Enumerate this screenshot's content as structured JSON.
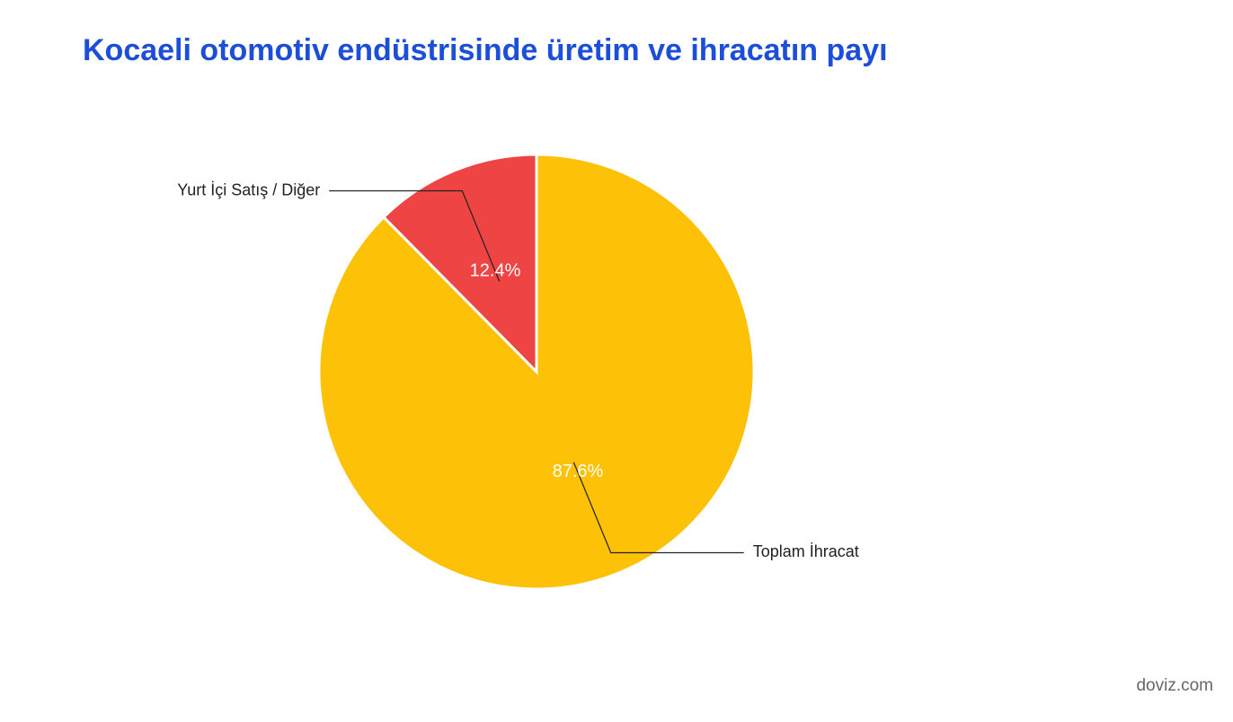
{
  "chart_data": {
    "type": "pie",
    "title": "Kocaeli otomotiv endüstrisinde üretim ve ihracatın payı",
    "categories": [
      "Toplam İhracat",
      "Yurt İçi Satış / Diğer"
    ],
    "values": [
      87.6,
      12.4
    ],
    "value_labels": [
      "87.6%",
      "12.4%"
    ],
    "colors": [
      "#fdc107",
      "#ef4444"
    ]
  },
  "watermark": "doviz.com"
}
